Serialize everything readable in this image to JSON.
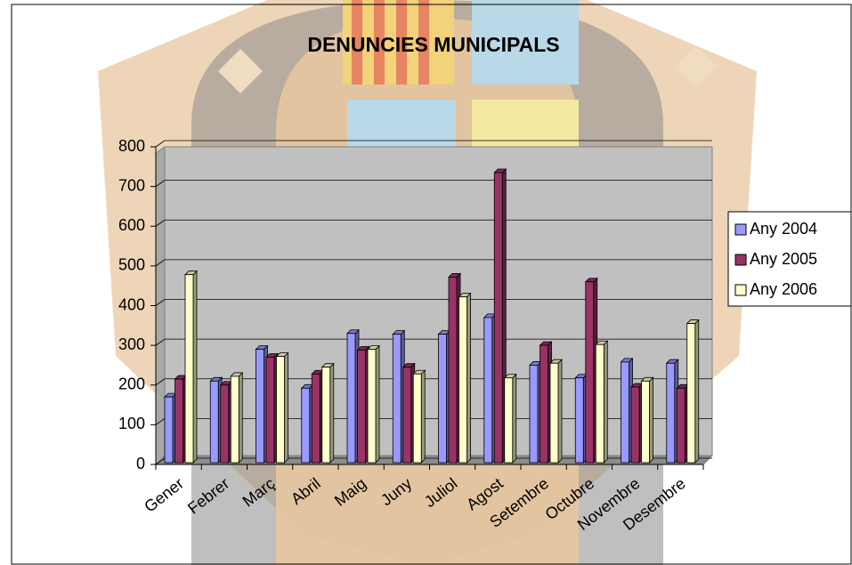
{
  "chart_data": {
    "type": "bar3d",
    "title": "DENUNCIES MUNICIPALS",
    "categories": [
      "Gener",
      "Febrer",
      "Març",
      "Abril",
      "Maig",
      "Juny",
      "Juliol",
      "Agost",
      "Setembre",
      "Octubre",
      "Novembre",
      "Desembre"
    ],
    "series": [
      {
        "name": "Any 2004",
        "color": "#9999ff",
        "values": [
          170,
          210,
          290,
          192,
          330,
          328,
          328,
          370,
          250,
          218,
          258,
          255
        ]
      },
      {
        "name": "Any 2005",
        "color": "#993366",
        "values": [
          215,
          200,
          270,
          228,
          288,
          245,
          472,
          735,
          300,
          460,
          195,
          192
        ]
      },
      {
        "name": "Any 2006",
        "color": "#ffffcc",
        "values": [
          478,
          222,
          272,
          245,
          290,
          228,
          422,
          218,
          255,
          302,
          210,
          355
        ]
      }
    ],
    "ylim": [
      0,
      800
    ],
    "yticks": [
      0,
      100,
      200,
      300,
      400,
      500,
      600,
      700,
      800
    ],
    "grid": true,
    "legend": "right"
  }
}
